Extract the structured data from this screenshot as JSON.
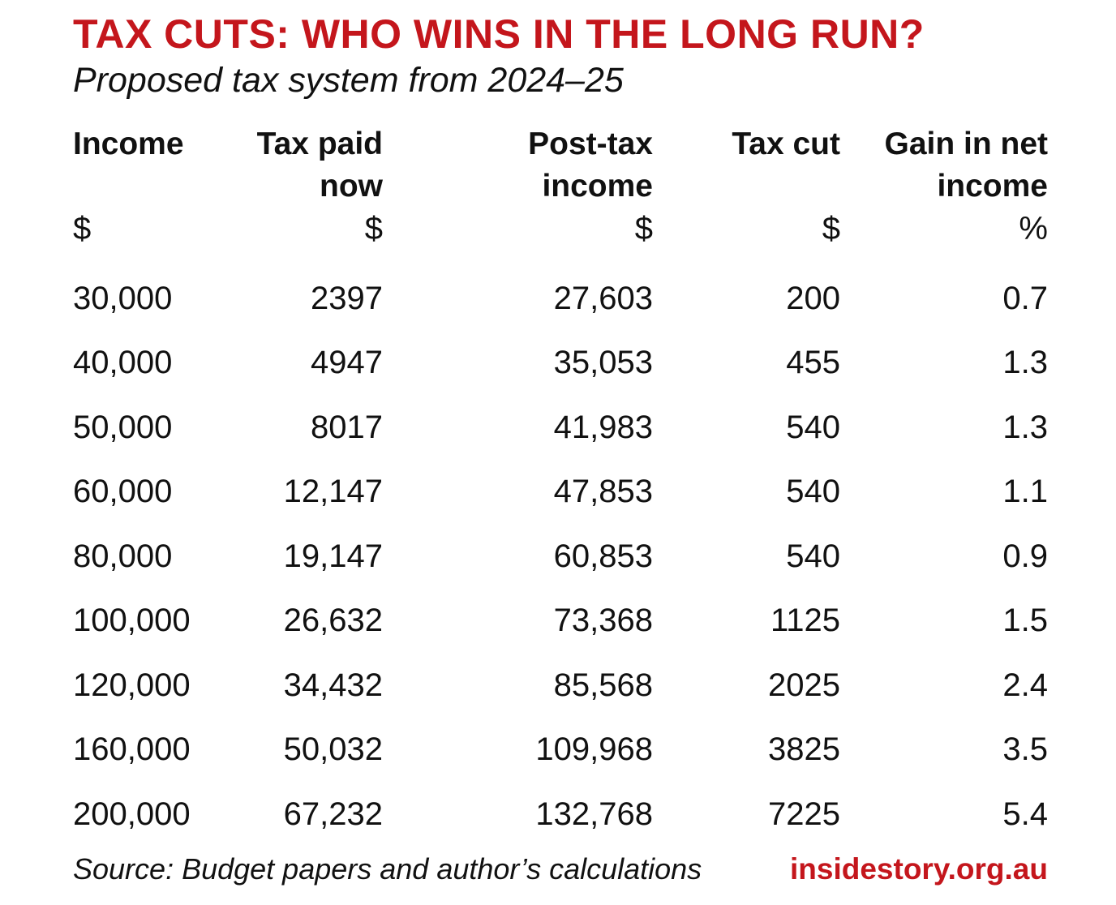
{
  "colors": {
    "title": "#c4161c",
    "brand": "#c4161c",
    "text": "#111111",
    "background": "#ffffff"
  },
  "chart_data": {
    "type": "table",
    "title": "TAX CUTS: WHO WINS IN THE LONG RUN?",
    "subtitle": "Proposed tax system from 2024–25",
    "columns": [
      {
        "lines": [
          "Income"
        ],
        "unit": "$",
        "align": "left"
      },
      {
        "lines": [
          "Tax paid",
          "now"
        ],
        "unit": "$",
        "align": "right"
      },
      {
        "lines": [
          "Post-tax",
          "income"
        ],
        "unit": "$",
        "align": "right"
      },
      {
        "lines": [
          "Tax cut"
        ],
        "unit": "$",
        "align": "right"
      },
      {
        "lines": [
          "Gain in net",
          "income"
        ],
        "unit": "%",
        "align": "right"
      }
    ],
    "rows": [
      [
        "30,000",
        "2397",
        "27,603",
        "200",
        "0.7"
      ],
      [
        "40,000",
        "4947",
        "35,053",
        "455",
        "1.3"
      ],
      [
        "50,000",
        "8017",
        "41,983",
        "540",
        "1.3"
      ],
      [
        "60,000",
        "12,147",
        "47,853",
        "540",
        "1.1"
      ],
      [
        "80,000",
        "19,147",
        "60,853",
        "540",
        "0.9"
      ],
      [
        "100,000",
        "26,632",
        "73,368",
        "1125",
        "1.5"
      ],
      [
        "120,000",
        "34,432",
        "85,568",
        "2025",
        "2.4"
      ],
      [
        "160,000",
        "50,032",
        "109,968",
        "3825",
        "3.5"
      ],
      [
        "200,000",
        "67,232",
        "132,768",
        "7225",
        "5.4"
      ]
    ]
  },
  "footer": {
    "source": "Source: Budget papers and author’s calculations",
    "brand": "insidestory.org.au"
  }
}
